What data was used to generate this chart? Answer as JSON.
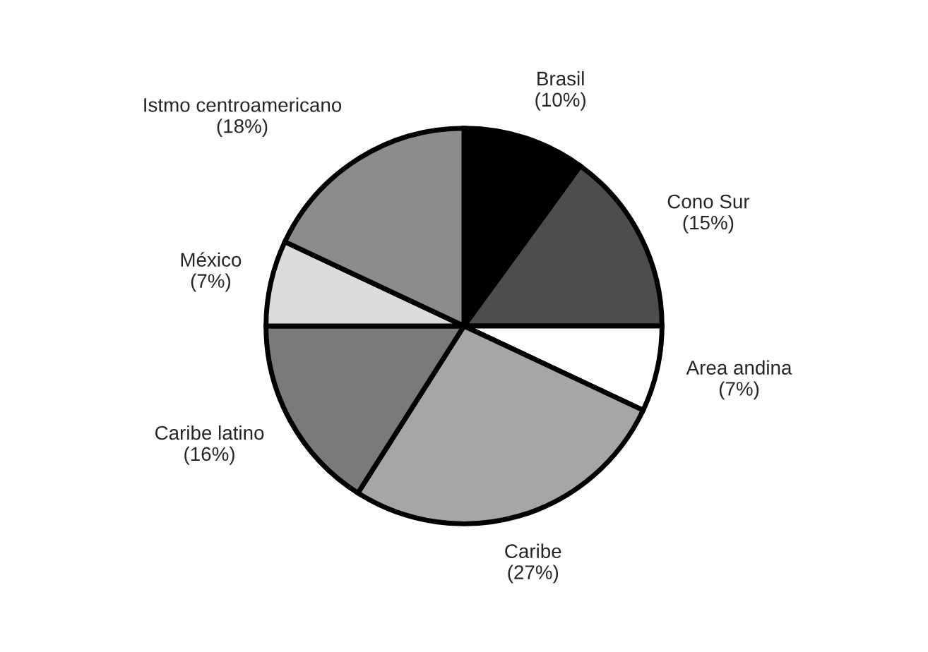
{
  "chart_data": {
    "type": "pie",
    "categories": [
      "Brasil",
      "Cono Sur",
      "Area andina",
      "Caribe",
      "Caribe latino",
      "México",
      "Istmo centroamericano"
    ],
    "values": [
      10,
      15,
      7,
      27,
      16,
      7,
      18
    ],
    "value_labels": [
      "(10%)",
      "(15%)",
      "(7%)",
      "(27%)",
      "(16%)",
      "(7%)",
      "(18%)"
    ],
    "colors": [
      "#000000",
      "#4d4d4d",
      "#ffffff",
      "#a6a6a6",
      "#7a7a7a",
      "#dcdcdc",
      "#8c8c8c"
    ]
  }
}
